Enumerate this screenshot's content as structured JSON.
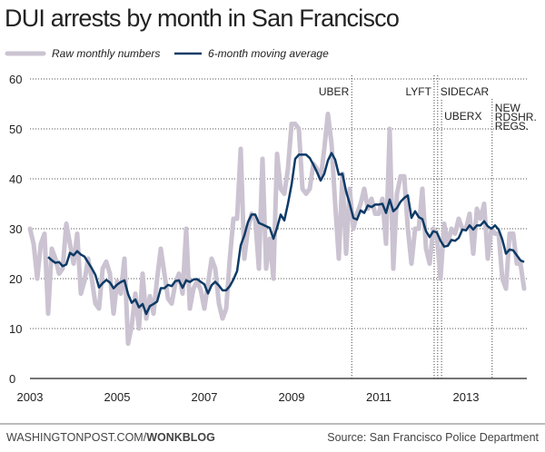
{
  "chart_data": {
    "type": "line",
    "title": "DUI arrests by month in San Francisco",
    "x_start": "2003-01",
    "x_interval": "month",
    "xlim": [
      2003,
      2014.6
    ],
    "ylim": [
      0,
      60
    ],
    "yticks": [
      0,
      10,
      20,
      30,
      40,
      50,
      60
    ],
    "xticks": [
      2003,
      2005,
      2007,
      2009,
      2011,
      2013
    ],
    "grid": "horizontal dotted",
    "legend_placement": "top-left",
    "series": [
      {
        "name": "Raw monthly numbers",
        "color": "#cbc3d1",
        "values": [
          30,
          27,
          20,
          27,
          29,
          13,
          26,
          24,
          21,
          22,
          31,
          27,
          23,
          29,
          17,
          19.5,
          24,
          20,
          15,
          14,
          22,
          23.4,
          21,
          13,
          19.5,
          17,
          24,
          7,
          10.5,
          17,
          10,
          21,
          12,
          16.5,
          13,
          20,
          26,
          21,
          16,
          15,
          19,
          21,
          17,
          30,
          14,
          18,
          19.5,
          17.7,
          14,
          19,
          24,
          22,
          15,
          12,
          14,
          24,
          32,
          32,
          46,
          24,
          30,
          33,
          32,
          22,
          44,
          22,
          28,
          20,
          45,
          38,
          37,
          42,
          51,
          51,
          50,
          38,
          37,
          38,
          43,
          42,
          40,
          46,
          53,
          47,
          35,
          24,
          41,
          25,
          38,
          30,
          33,
          35,
          38,
          34,
          36,
          33,
          33,
          36,
          27,
          50,
          22,
          37,
          40.5,
          40.5,
          30,
          23,
          30,
          30,
          38,
          26,
          23,
          30,
          28.5,
          20,
          31,
          27,
          30,
          29,
          32,
          30,
          30,
          33,
          25,
          34,
          32,
          35,
          24,
          30,
          29,
          29,
          20,
          18,
          29,
          29,
          23,
          23,
          18
        ]
      },
      {
        "name": "6-month moving average",
        "color": "#0d3a66",
        "moving_average_of": "Raw monthly numbers",
        "window": 6
      }
    ],
    "annotations": [
      {
        "label": "UBER",
        "x": 2010.38
      },
      {
        "label": "LYFT",
        "x": 2012.27
      },
      {
        "label": "SIDECAR",
        "x": 2012.35
      },
      {
        "label": "UBERX",
        "x": 2012.44
      },
      {
        "label": [
          "NEW",
          "RDSHR.",
          "REGS."
        ],
        "x": 2013.6
      }
    ]
  },
  "footer": {
    "credit_plain": "WASHINGTONPOST.COM/",
    "credit_bold": "WONKBLOG",
    "source": "Source: San Francisco Police Department"
  }
}
